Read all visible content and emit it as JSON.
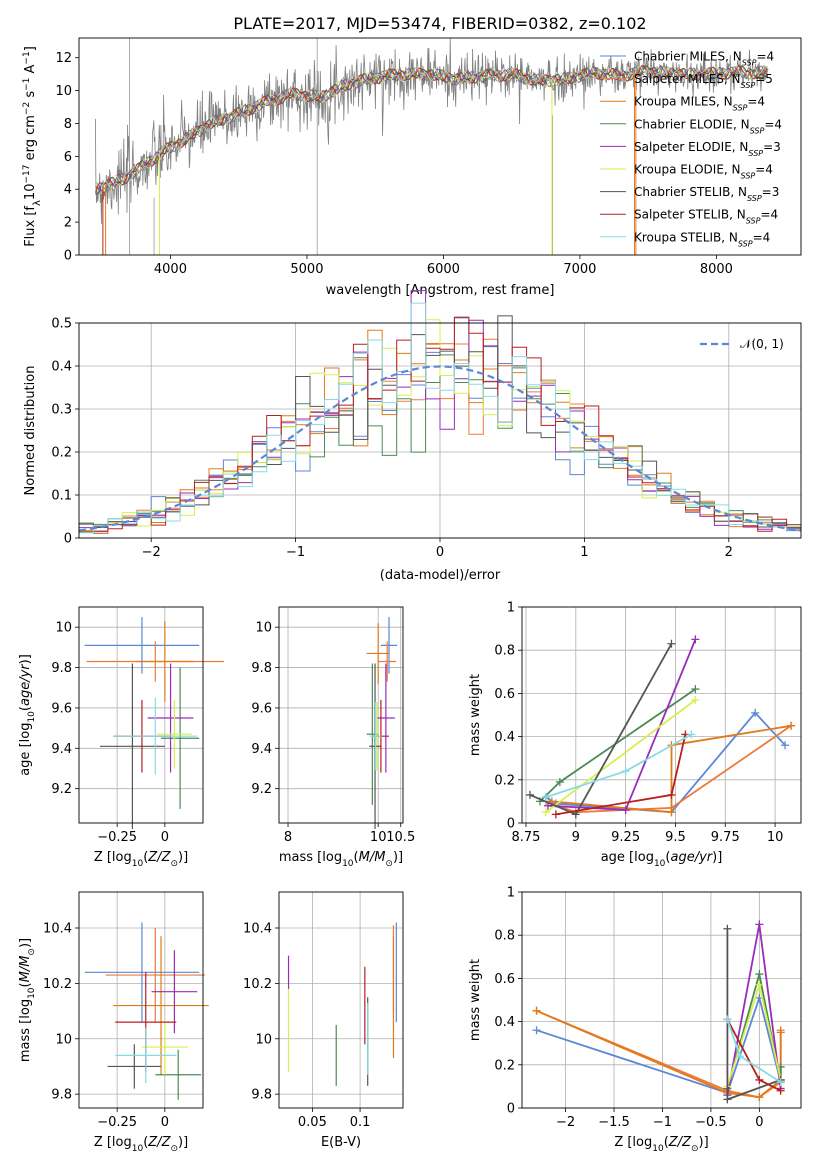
{
  "figure": {
    "title": "PLATE=2017, MJD=53474, FIBERID=0382, z=0.102"
  },
  "models": [
    {
      "name": "Chabrier MILES",
      "nssp": 4,
      "color": "#5b87d6"
    },
    {
      "name": "Salpeter MILES",
      "nssp": 5,
      "color": "#ee7a3a"
    },
    {
      "name": "Kroupa MILES",
      "nssp": 4,
      "color": "#e07b1a"
    },
    {
      "name": "Chabrier ELODIE",
      "nssp": 4,
      "color": "#4d8a55"
    },
    {
      "name": "Salpeter ELODIE",
      "nssp": 3,
      "color": "#9a2db8"
    },
    {
      "name": "Kroupa ELODIE",
      "nssp": 4,
      "color": "#d7ef4e"
    },
    {
      "name": "Chabrier STELIB",
      "nssp": 3,
      "color": "#555555"
    },
    {
      "name": "Salpeter STELIB",
      "nssp": 4,
      "color": "#b82020"
    },
    {
      "name": "Kroupa STELIB",
      "nssp": 4,
      "color": "#86dbe3"
    }
  ],
  "chart_data": [
    {
      "id": "spectrum",
      "type": "line",
      "xlabel": "wavelength [Angstrom, rest frame]",
      "ylabel": "Flux [fλ10⁻¹⁷ erg cm⁻² s⁻¹ A⁻¹]",
      "xlim": [
        3330,
        8620
      ],
      "ylim": [
        0,
        13.2
      ],
      "xticks": [
        4000,
        5000,
        6000,
        7000,
        8000
      ],
      "yticks": [
        0,
        2,
        4,
        6,
        8,
        10,
        12
      ],
      "data_range_x": [
        3450,
        8380
      ],
      "envelope": {
        "x": [
          3450,
          3550,
          3650,
          3800,
          3950,
          4100,
          4300,
          4500,
          4700,
          4900,
          5100,
          5300,
          5500,
          5700,
          5900,
          6100,
          6300,
          6500,
          6700,
          6900,
          7100,
          7300,
          7500,
          7700,
          7900,
          8100,
          8300
        ],
        "y": [
          4.0,
          4.3,
          4.6,
          5.4,
          6.3,
          7.0,
          8.0,
          8.6,
          9.3,
          9.8,
          9.6,
          10.4,
          10.8,
          11.0,
          11.0,
          10.7,
          10.9,
          11.0,
          10.6,
          10.7,
          11.1,
          10.9,
          11.2,
          11.0,
          11.0,
          11.1,
          11.1
        ]
      },
      "grid": false,
      "legend": "upper right"
    },
    {
      "id": "residuals",
      "type": "step",
      "xlabel": "(data-model)/error",
      "ylabel": "Normed distribution",
      "xlim": [
        -2.5,
        2.5
      ],
      "ylim": [
        0,
        0.5
      ],
      "xticks": [
        -2,
        -1,
        0,
        1,
        2
      ],
      "yticks": [
        0.0,
        0.1,
        0.2,
        0.3,
        0.4,
        0.5
      ],
      "bins": 50,
      "reference": {
        "name": "N(0,1)",
        "mu": 0,
        "sigma": 1
      },
      "grid": true,
      "legend": "upper right"
    },
    {
      "id": "age-vs-Z",
      "type": "errorbar",
      "xlabel": "Z [log10(Z/Z⊙)]",
      "ylabel": "age [log10(age/yr)]",
      "xlim": [
        -0.45,
        0.2
      ],
      "ylim": [
        9.03,
        10.1
      ],
      "xticks": [
        -0.25,
        0.0
      ],
      "yticks": [
        9.2,
        9.4,
        9.6,
        9.8,
        10.0
      ],
      "points": [
        {
          "x": -0.12,
          "xerr": 0.3,
          "y": 9.91,
          "yerr": 0.14
        },
        {
          "x": -0.05,
          "xerr": 0.36,
          "y": 9.83,
          "yerr": 0.1
        },
        {
          "x": 0.0,
          "xerr": 0.15,
          "y": 9.83,
          "yerr": 0.2
        },
        {
          "x": 0.08,
          "xerr": 0.1,
          "y": 9.45,
          "yerr": 0.35
        },
        {
          "x": 0.03,
          "xerr": 0.12,
          "y": 9.55,
          "yerr": 0.27
        },
        {
          "x": 0.05,
          "xerr": 0.09,
          "y": 9.47,
          "yerr": 0.17
        },
        {
          "x": -0.17,
          "xerr": 0.17,
          "y": 9.41,
          "yerr": 0.41
        },
        {
          "x": -0.12,
          "xerr": 0.15,
          "y": 9.46,
          "yerr": 0.18
        },
        {
          "x": -0.05,
          "xerr": 0.22,
          "y": 9.46,
          "yerr": 0.19
        }
      ],
      "grid": true
    },
    {
      "id": "age-vs-mass",
      "type": "errorbar",
      "xlabel": "mass [log10(M/M⊙)]",
      "ylabel": "",
      "xlim": [
        7.8,
        10.55
      ],
      "ylim": [
        9.03,
        10.1
      ],
      "xticks": [
        8.0,
        10.0,
        10.5
      ],
      "yticks": [
        9.2,
        9.4,
        9.6,
        9.8,
        10.0
      ],
      "points": [
        {
          "x": 10.24,
          "xerr": 0.18,
          "y": 9.91,
          "yerr": 0.14
        },
        {
          "x": 10.2,
          "xerr": 0.2,
          "y": 9.83,
          "yerr": 0.1
        },
        {
          "x": 10.0,
          "xerr": 0.26,
          "y": 9.87,
          "yerr": 0.15
        },
        {
          "x": 9.87,
          "xerr": 0.13,
          "y": 9.47,
          "yerr": 0.35
        },
        {
          "x": 10.17,
          "xerr": 0.2,
          "y": 9.55,
          "yerr": 0.27
        },
        {
          "x": 9.97,
          "xerr": 0.07,
          "y": 9.46,
          "yerr": 0.17
        },
        {
          "x": 9.93,
          "xerr": 0.13,
          "y": 9.41,
          "yerr": 0.41
        },
        {
          "x": 10.06,
          "xerr": 0.18,
          "y": 9.46,
          "yerr": 0.18
        },
        {
          "x": 9.94,
          "xerr": 0.13,
          "y": 9.46,
          "yerr": 0.17
        }
      ],
      "grid": true
    },
    {
      "id": "weight-vs-age",
      "type": "line",
      "xlabel": "age [log10(age/yr)]",
      "ylabel": "mass weight",
      "xlim": [
        8.73,
        10.13
      ],
      "ylim": [
        0,
        1
      ],
      "xticks": [
        8.75,
        9.0,
        9.25,
        9.5,
        9.75,
        10.0
      ],
      "yticks": [
        0.0,
        0.2,
        0.4,
        0.6,
        0.8,
        1.0
      ],
      "series": [
        {
          "x": [
            8.85,
            8.9,
            9.48,
            9.9,
            10.05
          ],
          "y": [
            0.12,
            0.09,
            0.05,
            0.51,
            0.36
          ]
        },
        {
          "x": [
            8.85,
            9.0,
            9.48,
            10.08
          ],
          "y": [
            0.1,
            0.05,
            0.07,
            0.45
          ]
        },
        {
          "x": [
            8.88,
            9.48,
            9.48,
            10.08
          ],
          "y": [
            0.1,
            0.05,
            0.36,
            0.45
          ]
        },
        {
          "x": [
            8.82,
            8.92,
            9.6
          ],
          "y": [
            0.1,
            0.19,
            0.62
          ]
        },
        {
          "x": [
            8.86,
            9.25,
            9.6
          ],
          "y": [
            0.08,
            0.06,
            0.85
          ]
        },
        {
          "x": [
            8.85,
            9.6
          ],
          "y": [
            0.05,
            0.57
          ]
        },
        {
          "x": [
            8.77,
            9.0,
            9.48
          ],
          "y": [
            0.13,
            0.04,
            0.83
          ]
        },
        {
          "x": [
            8.9,
            9.48,
            9.55
          ],
          "y": [
            0.04,
            0.13,
            0.41
          ]
        },
        {
          "x": [
            8.85,
            9.25,
            9.58
          ],
          "y": [
            0.12,
            0.24,
            0.41
          ]
        }
      ],
      "grid": true
    },
    {
      "id": "mass-vs-Z",
      "type": "errorbar",
      "xlabel": "Z [log10(Z/Z⊙)]",
      "ylabel": "mass [log10(M/M⊙)]",
      "xlim": [
        -0.45,
        0.2
      ],
      "ylim": [
        9.75,
        10.53
      ],
      "xticks": [
        -0.25,
        0.0
      ],
      "yticks": [
        9.8,
        10.0,
        10.2,
        10.4
      ],
      "points": [
        {
          "x": -0.12,
          "xerr": 0.3,
          "y": 10.24,
          "yerr": 0.18
        },
        {
          "x": -0.05,
          "xerr": 0.26,
          "y": 10.23,
          "yerr": 0.17
        },
        {
          "x": -0.02,
          "xerr": 0.25,
          "y": 10.12,
          "yerr": 0.25
        },
        {
          "x": 0.07,
          "xerr": 0.12,
          "y": 9.87,
          "yerr": 0.09
        },
        {
          "x": 0.05,
          "xerr": 0.12,
          "y": 10.17,
          "yerr": 0.15
        },
        {
          "x": 0.0,
          "xerr": 0.12,
          "y": 9.97,
          "yerr": 0.1
        },
        {
          "x": -0.16,
          "xerr": 0.14,
          "y": 9.9,
          "yerr": 0.08
        },
        {
          "x": -0.1,
          "xerr": 0.16,
          "y": 10.06,
          "yerr": 0.18
        },
        {
          "x": -0.1,
          "xerr": 0.16,
          "y": 9.94,
          "yerr": 0.1
        }
      ],
      "grid": true
    },
    {
      "id": "mass-vs-ebv",
      "type": "errorbar",
      "xlabel": "E(B-V)",
      "ylabel": "",
      "xlim": [
        0.015,
        0.145
      ],
      "ylim": [
        9.75,
        10.53
      ],
      "xticks": [
        0.05,
        0.1
      ],
      "yticks": [
        9.8,
        10.0,
        10.2,
        10.4
      ],
      "points": [
        {
          "x": 0.138,
          "y": 10.24,
          "yerr": 0.18
        },
        {
          "x": 0.135,
          "y": 10.25,
          "yerr": 0.16
        },
        {
          "x": 0.135,
          "y": 10.15,
          "yerr": 0.22
        },
        {
          "x": 0.075,
          "y": 9.94,
          "yerr": 0.11
        },
        {
          "x": 0.025,
          "y": 10.24,
          "yerr": 0.06
        },
        {
          "x": 0.025,
          "y": 10.03,
          "yerr": 0.15
        },
        {
          "x": 0.108,
          "y": 9.99,
          "yerr": 0.16
        },
        {
          "x": 0.105,
          "y": 10.12,
          "yerr": 0.14
        },
        {
          "x": 0.108,
          "y": 10.0,
          "yerr": 0.13
        }
      ],
      "grid": true
    },
    {
      "id": "weight-vs-Z",
      "type": "line",
      "xlabel": "Z [log10(Z/Z⊙)]",
      "ylabel": "mass weight",
      "xlim": [
        -2.45,
        0.43
      ],
      "ylim": [
        0,
        1
      ],
      "xticks": [
        -2.0,
        -1.5,
        -1.0,
        -0.5,
        0.0
      ],
      "yticks": [
        0.0,
        0.2,
        0.4,
        0.6,
        0.8,
        1.0
      ],
      "series": [
        {
          "x": [
            -2.3,
            -0.33,
            0.0,
            0.22
          ],
          "y": [
            0.36,
            0.07,
            0.51,
            0.12
          ]
        },
        {
          "x": [
            -2.3,
            -0.33,
            0.0,
            0.22,
            0.22
          ],
          "y": [
            0.45,
            0.08,
            0.05,
            0.12,
            0.36
          ]
        },
        {
          "x": [
            -2.3,
            -0.33,
            0.0,
            0.22,
            0.22
          ],
          "y": [
            0.45,
            0.07,
            0.05,
            0.13,
            0.35
          ]
        },
        {
          "x": [
            -0.33,
            0.0,
            0.22,
            0.22
          ],
          "y": [
            0.09,
            0.62,
            0.12,
            0.19
          ]
        },
        {
          "x": [
            -0.33,
            0.0,
            0.22
          ],
          "y": [
            0.06,
            0.85,
            0.09
          ]
        },
        {
          "x": [
            -0.33,
            0.0,
            0.22
          ],
          "y": [
            0.1,
            0.57,
            0.13
          ]
        },
        {
          "x": [
            -0.33,
            -0.33,
            0.22
          ],
          "y": [
            0.83,
            0.04,
            0.13
          ]
        },
        {
          "x": [
            -0.33,
            0.0,
            0.22
          ],
          "y": [
            0.41,
            0.13,
            0.08
          ]
        },
        {
          "x": [
            -0.33,
            -0.2,
            0.22
          ],
          "y": [
            0.41,
            0.24,
            0.12
          ]
        }
      ],
      "grid": true
    }
  ]
}
